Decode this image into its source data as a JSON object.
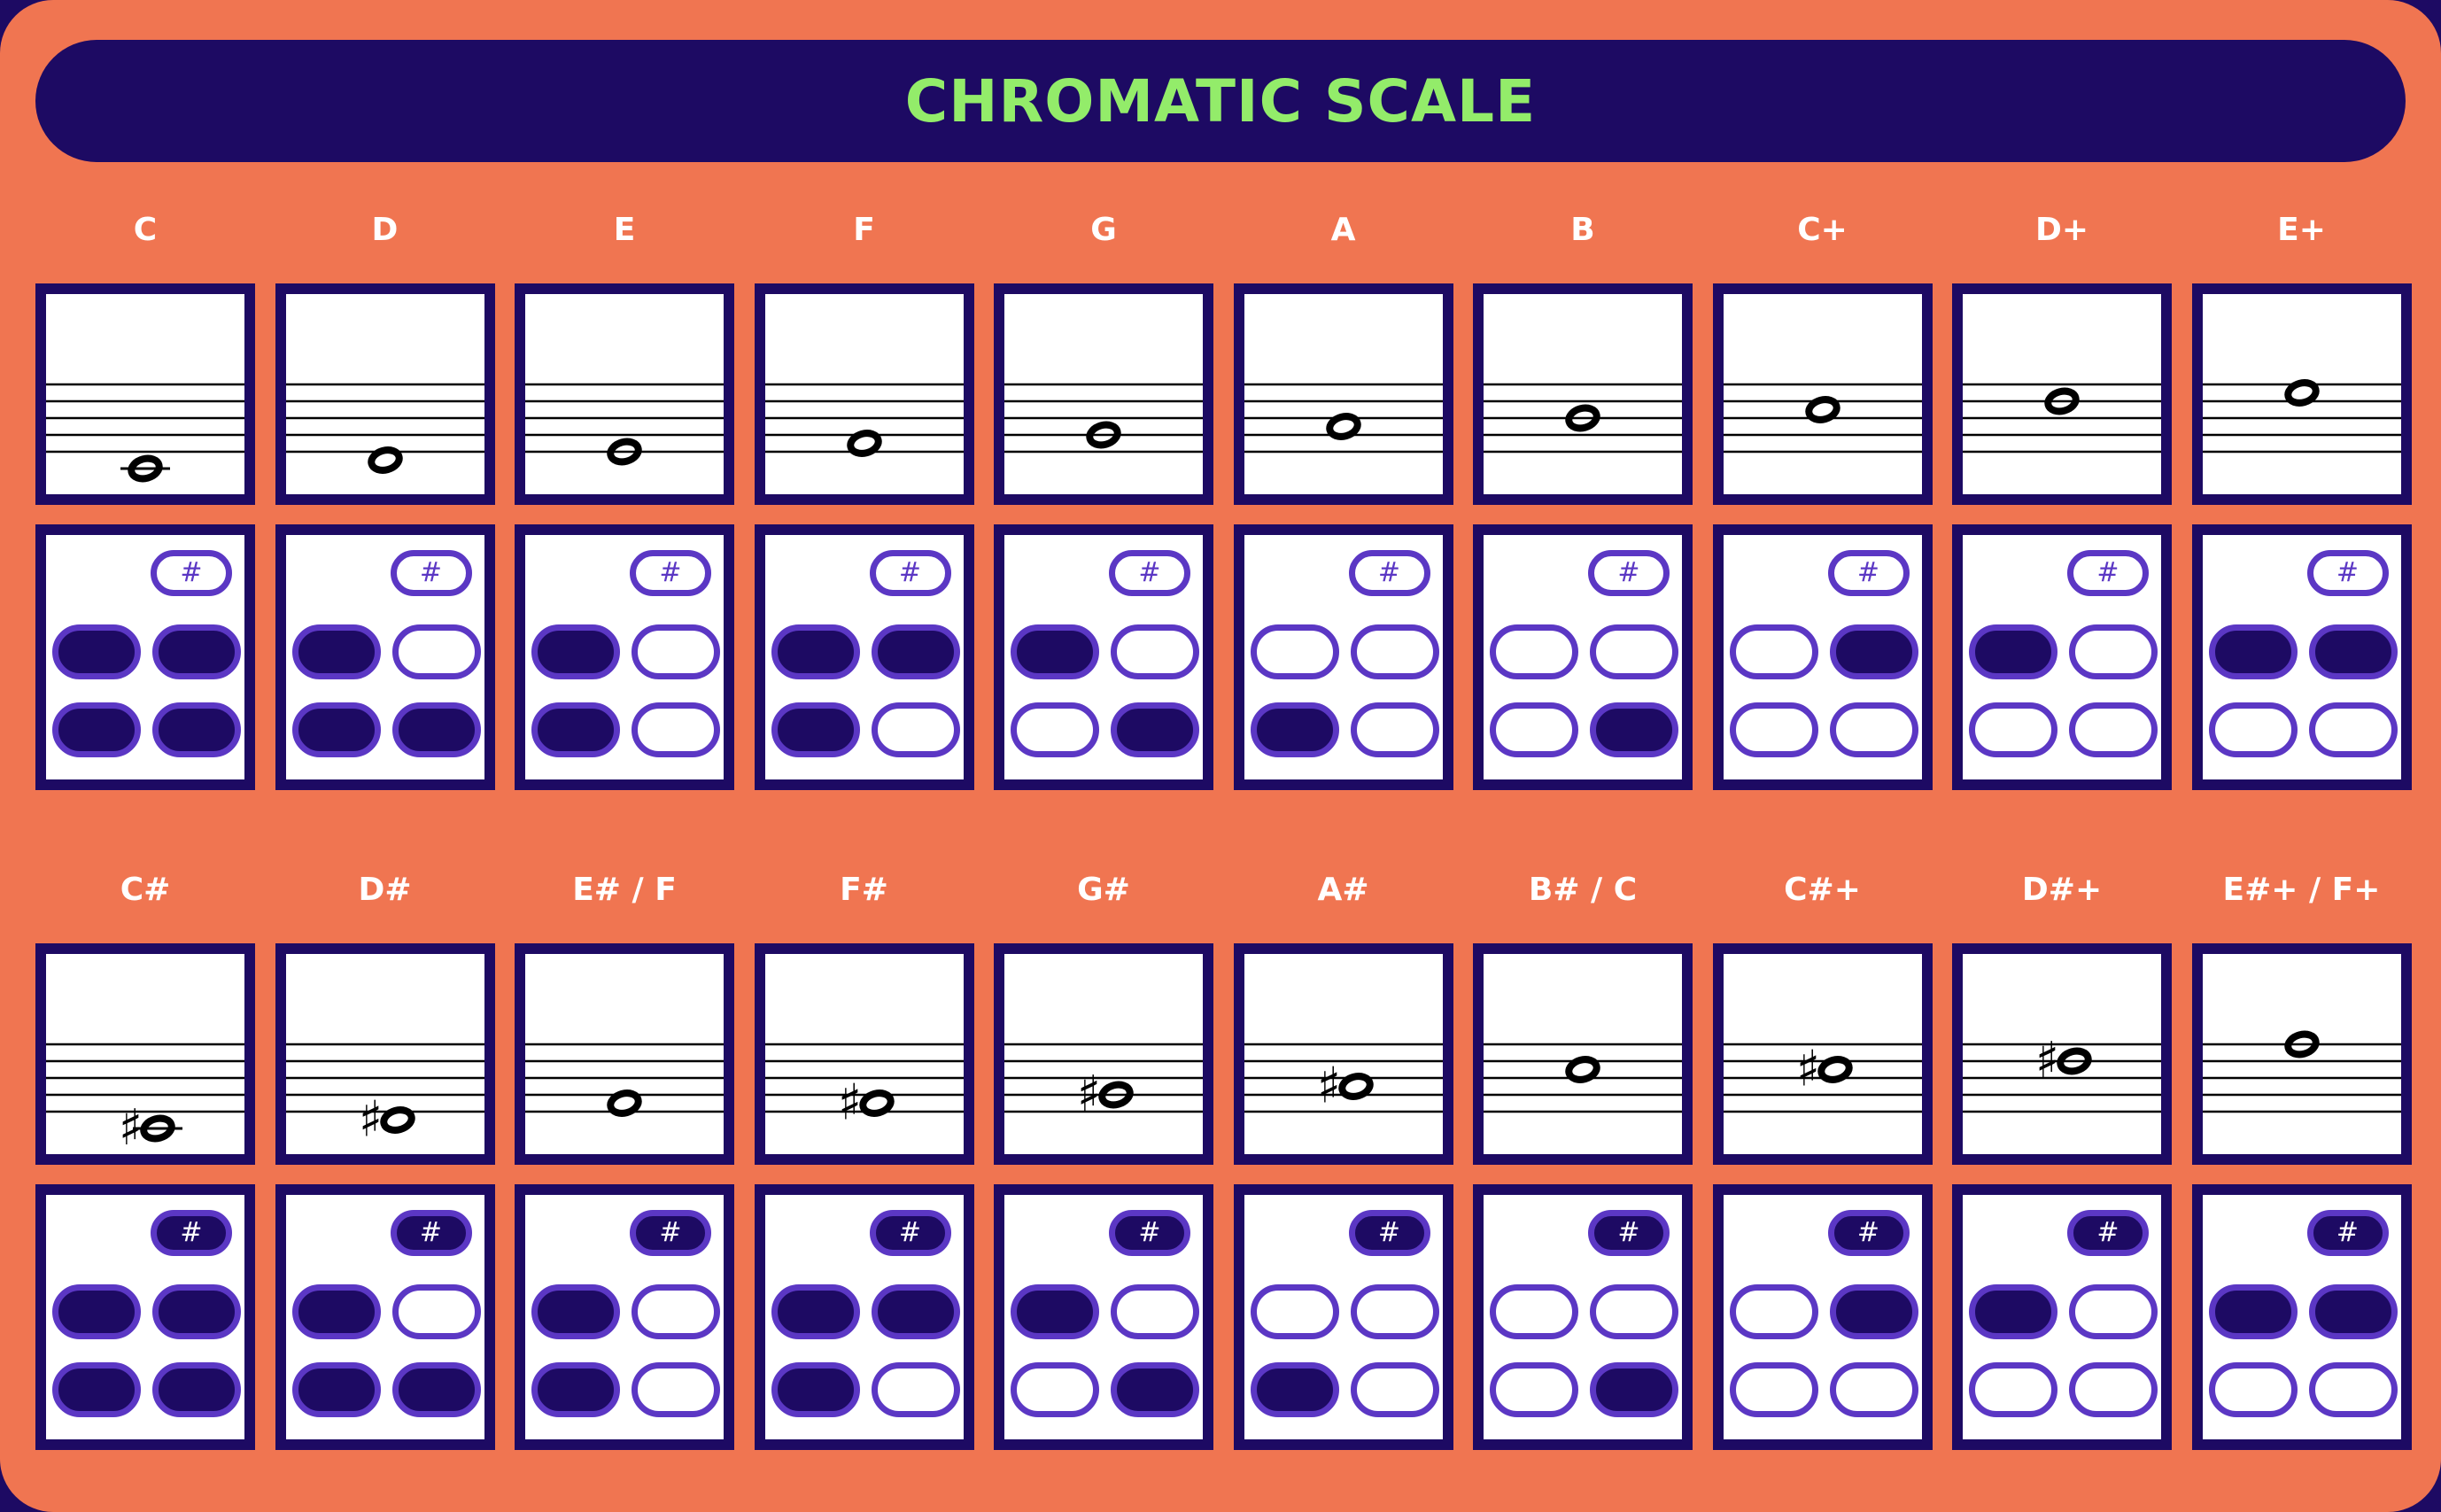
{
  "title": "CHROMATIC SCALE",
  "colors": {
    "background": "#f07551",
    "navy": "#1d0a63",
    "title_text": "#93ec6a",
    "key_outline": "#5b37c4",
    "label_text": "#ffffff"
  },
  "sharp_key_symbol": "#",
  "note_rows": [
    {
      "notes": [
        {
          "label": "C",
          "staff_step": -2,
          "accidental": "",
          "sharp_key": false,
          "holes": [
            true,
            true,
            true,
            true
          ]
        },
        {
          "label": "D",
          "staff_step": -1,
          "accidental": "",
          "sharp_key": false,
          "holes": [
            true,
            false,
            true,
            true
          ]
        },
        {
          "label": "E",
          "staff_step": 0,
          "accidental": "",
          "sharp_key": false,
          "holes": [
            true,
            false,
            true,
            false
          ]
        },
        {
          "label": "F",
          "staff_step": 1,
          "accidental": "",
          "sharp_key": false,
          "holes": [
            true,
            true,
            true,
            false
          ]
        },
        {
          "label": "G",
          "staff_step": 2,
          "accidental": "",
          "sharp_key": false,
          "holes": [
            true,
            false,
            false,
            true
          ]
        },
        {
          "label": "A",
          "staff_step": 3,
          "accidental": "",
          "sharp_key": false,
          "holes": [
            false,
            false,
            true,
            false
          ]
        },
        {
          "label": "B",
          "staff_step": 4,
          "accidental": "",
          "sharp_key": false,
          "holes": [
            false,
            false,
            false,
            true
          ]
        },
        {
          "label": "C+",
          "staff_step": 5,
          "accidental": "",
          "sharp_key": false,
          "holes": [
            false,
            true,
            false,
            false
          ]
        },
        {
          "label": "D+",
          "staff_step": 6,
          "accidental": "",
          "sharp_key": false,
          "holes": [
            true,
            false,
            false,
            false
          ]
        },
        {
          "label": "E+",
          "staff_step": 7,
          "accidental": "",
          "sharp_key": false,
          "holes": [
            true,
            true,
            false,
            false
          ]
        }
      ]
    },
    {
      "notes": [
        {
          "label": "C#",
          "staff_step": -2,
          "accidental": "♯",
          "sharp_key": true,
          "holes": [
            true,
            true,
            true,
            true
          ]
        },
        {
          "label": "D#",
          "staff_step": -1,
          "accidental": "♯",
          "sharp_key": true,
          "holes": [
            true,
            false,
            true,
            true
          ]
        },
        {
          "label": "E# / F",
          "staff_step": 1,
          "accidental": "",
          "sharp_key": true,
          "holes": [
            true,
            false,
            true,
            false
          ]
        },
        {
          "label": "F#",
          "staff_step": 1,
          "accidental": "♯",
          "sharp_key": true,
          "holes": [
            true,
            true,
            true,
            false
          ]
        },
        {
          "label": "G#",
          "staff_step": 2,
          "accidental": "♯",
          "sharp_key": true,
          "holes": [
            true,
            false,
            false,
            true
          ]
        },
        {
          "label": "A#",
          "staff_step": 3,
          "accidental": "♯",
          "sharp_key": true,
          "holes": [
            false,
            false,
            true,
            false
          ]
        },
        {
          "label": "B# / C",
          "staff_step": 5,
          "accidental": "",
          "sharp_key": true,
          "holes": [
            false,
            false,
            false,
            true
          ]
        },
        {
          "label": "C#+",
          "staff_step": 5,
          "accidental": "♯",
          "sharp_key": true,
          "holes": [
            false,
            true,
            false,
            false
          ]
        },
        {
          "label": "D#+",
          "staff_step": 6,
          "accidental": "♯",
          "sharp_key": true,
          "holes": [
            true,
            false,
            false,
            false
          ]
        },
        {
          "label": "E#+ / F+",
          "staff_step": 8,
          "accidental": "",
          "sharp_key": true,
          "holes": [
            true,
            true,
            false,
            false
          ]
        }
      ]
    }
  ]
}
